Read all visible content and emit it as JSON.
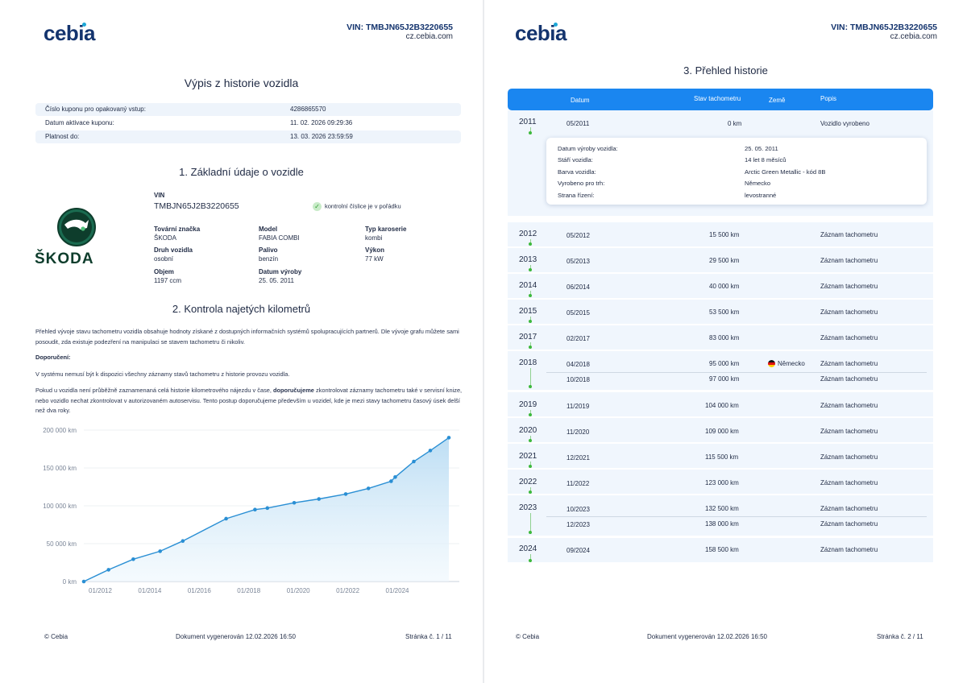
{
  "brand": "cebia",
  "header": {
    "vin": "VIN: TMBJN65J2B3220655",
    "site": "cz.cebia.com"
  },
  "page1": {
    "title": "Výpis z historie vozidla",
    "coupon_rows": [
      {
        "label": "Číslo kuponu pro opakovaný vstup:",
        "value": "4286865570"
      },
      {
        "label": "Datum aktivace kuponu:",
        "value": "11. 02. 2026 09:29:36"
      },
      {
        "label": "Platnost do:",
        "value": "13. 03. 2026 23:59:59"
      }
    ],
    "section1_title": "1. Základní údaje o vozidle",
    "vehicle_logo_text": "ŠKODA",
    "vin_label": "VIN",
    "vin_value": "TMBJN65J2B3220655",
    "vin_check": "kontrolní číslice je v pořádku",
    "fields": [
      {
        "label": "Tovární značka",
        "value": "ŠKODA"
      },
      {
        "label": "Model",
        "value": "FABIA COMBI"
      },
      {
        "label": "Typ karoserie",
        "value": "kombi"
      },
      {
        "label": "Druh vozidla",
        "value": "osobní"
      },
      {
        "label": "Palivo",
        "value": "benzín"
      },
      {
        "label": "Výkon",
        "value": "77 kW"
      },
      {
        "label": "Objem",
        "value": "1197 ccm"
      },
      {
        "label": "Datum výroby",
        "value": "25. 05. 2011"
      }
    ],
    "section2_title": "2. Kontrola najetých kilometrů",
    "para1": "Přehled vývoje stavu tachometru vozidla obsahuje hodnoty získané z dostupných informačních systémů spolupracujících partnerů. Dle vývoje grafu můžete sami posoudit, zda existuje podezření na manipulaci se stavem tachometru či nikoliv.",
    "recommend_label": "Doporučení:",
    "para2": "V systému nemusí být k dispozici všechny záznamy stavů tachometru z historie provozu vozidla.",
    "para3_a": "Pokud u vozidla není průběžně zaznamenaná celá historie kilometrového nájezdu v čase, ",
    "para3_b": "doporučujeme",
    "para3_c": " zkontrolovat záznamy tachometru také v servisní knize, nebo vozidlo nechat zkontrolovat v autorizovaném autoservisu. Tento postup doporučujeme především u vozidel, kde je mezi stavy tachometru časový úsek delší než dva roky."
  },
  "chart_data": {
    "type": "area",
    "title": "",
    "xlabel": "",
    "ylabel": "",
    "ylim": [
      0,
      200000
    ],
    "y_ticks": [
      "0 km",
      "50 000 km",
      "100 000 km",
      "150 000 km",
      "200 000 km"
    ],
    "x_ticks": [
      "01/2012",
      "01/2014",
      "01/2016",
      "01/2018",
      "01/2020",
      "01/2022",
      "01/2024"
    ],
    "x": [
      "05/2011",
      "05/2012",
      "05/2013",
      "06/2014",
      "05/2015",
      "02/2017",
      "04/2018",
      "10/2018",
      "11/2019",
      "11/2020",
      "12/2021",
      "11/2022",
      "10/2023",
      "12/2023",
      "09/2024",
      "05/2025",
      "02/2026"
    ],
    "values": [
      0,
      15500,
      29500,
      40000,
      53500,
      83000,
      95000,
      97000,
      104000,
      109000,
      115500,
      123000,
      132500,
      138000,
      158500,
      173000,
      190000
    ],
    "color": "#2a8fd4",
    "fill": "#d6ebf8",
    "grid": true,
    "legend": "none"
  },
  "page2": {
    "title": "3. Přehled historie",
    "columns": [
      "Datum",
      "Stav tachometru",
      "Země",
      "Popis"
    ],
    "detail": [
      {
        "label": "Datum výroby vozidla:",
        "value": "25. 05. 2011"
      },
      {
        "label": "Stáří vozidla:",
        "value": "14 let 8 měsíců"
      },
      {
        "label": "Barva vozidla:",
        "value": "Arctic Green Metallic - kód 8B"
      },
      {
        "label": "Vyrobeno pro trh:",
        "value": "Německo"
      },
      {
        "label": "Strana řízení:",
        "value": "levostranné"
      }
    ],
    "rows": [
      {
        "year": "2011",
        "date": "05/2011",
        "km": "0 km",
        "country": "",
        "desc": "Vozidlo vyrobeno"
      },
      {
        "year": "2012",
        "date": "05/2012",
        "km": "15 500 km",
        "country": "",
        "desc": "Záznam tachometru"
      },
      {
        "year": "2013",
        "date": "05/2013",
        "km": "29 500 km",
        "country": "",
        "desc": "Záznam tachometru"
      },
      {
        "year": "2014",
        "date": "06/2014",
        "km": "40 000 km",
        "country": "",
        "desc": "Záznam tachometru"
      },
      {
        "year": "2015",
        "date": "05/2015",
        "km": "53 500 km",
        "country": "",
        "desc": "Záznam tachometru"
      },
      {
        "year": "2017",
        "date": "02/2017",
        "km": "83 000 km",
        "country": "",
        "desc": "Záznam tachometru"
      },
      {
        "year": "2018",
        "date": "04/2018",
        "km": "95 000 km",
        "country": "Německo",
        "desc": "Záznam tachometru"
      },
      {
        "year": "",
        "date": "10/2018",
        "km": "97 000 km",
        "country": "",
        "desc": "Záznam tachometru"
      },
      {
        "year": "2019",
        "date": "11/2019",
        "km": "104 000 km",
        "country": "",
        "desc": "Záznam tachometru"
      },
      {
        "year": "2020",
        "date": "11/2020",
        "km": "109 000 km",
        "country": "",
        "desc": "Záznam tachometru"
      },
      {
        "year": "2021",
        "date": "12/2021",
        "km": "115 500 km",
        "country": "",
        "desc": "Záznam tachometru"
      },
      {
        "year": "2022",
        "date": "11/2022",
        "km": "123 000 km",
        "country": "",
        "desc": "Záznam tachometru"
      },
      {
        "year": "2023",
        "date": "10/2023",
        "km": "132 500 km",
        "country": "",
        "desc": "Záznam tachometru"
      },
      {
        "year": "",
        "date": "12/2023",
        "km": "138 000 km",
        "country": "",
        "desc": "Záznam tachometru"
      },
      {
        "year": "2024",
        "date": "09/2024",
        "km": "158 500 km",
        "country": "",
        "desc": "Záznam tachometru"
      }
    ]
  },
  "footer": {
    "copyright": "© Cebia",
    "generated": "Dokument vygenerován 12.02.2026 16:50",
    "page1": "Stránka č. 1 / 11",
    "page2": "Stránka č. 2 / 11"
  }
}
